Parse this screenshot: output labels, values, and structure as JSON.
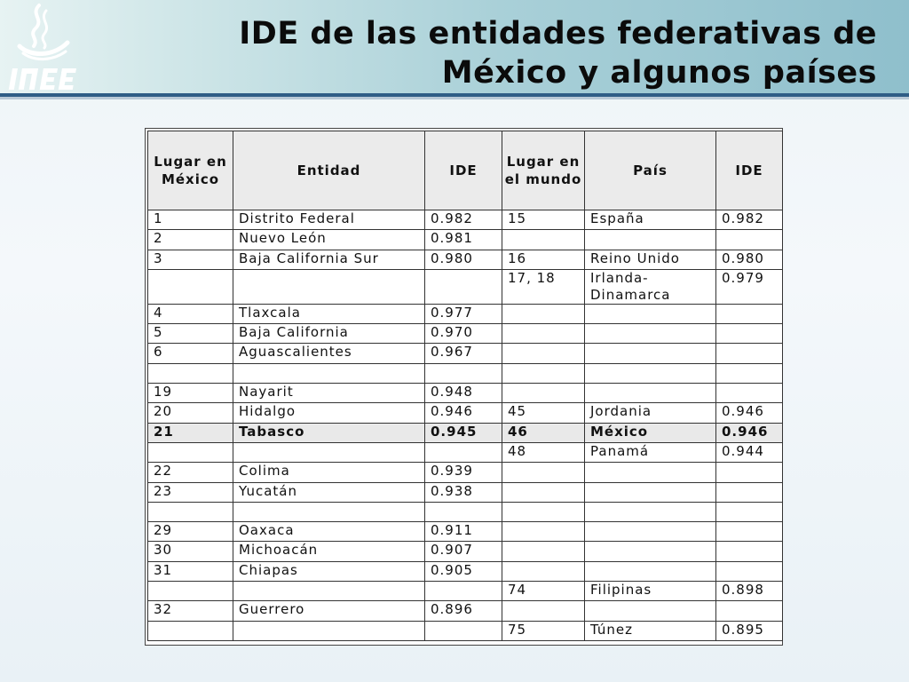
{
  "header": {
    "title_line1": "IDE de las entidades federativas de",
    "title_line2": "México y algunos países",
    "logo_text": "INEE"
  },
  "table": {
    "columns": [
      "Lugar en México",
      "Entidad",
      "IDE",
      "Lugar en el mundo",
      "País",
      "IDE"
    ],
    "rows": [
      [
        "1",
        "Distrito Federal",
        "0.982",
        "15",
        "España",
        "0.982"
      ],
      [
        "2",
        "Nuevo León",
        "0.981",
        "",
        "",
        ""
      ],
      [
        "3",
        "Baja California Sur",
        "0.980",
        "16",
        "Reino Unido",
        "0.980"
      ],
      [
        "",
        "",
        "",
        "17, 18",
        "Irlanda-Dinamarca",
        "0.979"
      ],
      [
        "4",
        "Tlaxcala",
        "0.977",
        "",
        "",
        ""
      ],
      [
        "5",
        "Baja California",
        "0.970",
        "",
        "",
        ""
      ],
      [
        "6",
        "Aguascalientes",
        "0.967",
        "",
        "",
        ""
      ],
      [
        "",
        "",
        "",
        "",
        "",
        ""
      ],
      [
        "19",
        "Nayarit",
        "0.948",
        "",
        "",
        ""
      ],
      [
        "20",
        "Hidalgo",
        "0.946",
        "45",
        "Jordania",
        "0.946"
      ],
      [
        "21",
        "Tabasco",
        "0.945",
        "46",
        "México",
        "0.946"
      ],
      [
        "",
        "",
        "",
        "48",
        "Panamá",
        "0.944"
      ],
      [
        "22",
        "Colima",
        "0.939",
        "",
        "",
        ""
      ],
      [
        "23",
        "Yucatán",
        "0.938",
        "",
        "",
        ""
      ],
      [
        "",
        "",
        "",
        "",
        "",
        ""
      ],
      [
        "29",
        "Oaxaca",
        "0.911",
        "",
        "",
        ""
      ],
      [
        "30",
        "Michoacán",
        "0.907",
        "",
        "",
        ""
      ],
      [
        "31",
        "Chiapas",
        "0.905",
        "",
        "",
        ""
      ],
      [
        "",
        "",
        "",
        "74",
        "Filipinas",
        "0.898"
      ],
      [
        "32",
        "Guerrero",
        "0.896",
        "",
        "",
        ""
      ],
      [
        "",
        "",
        "",
        "75",
        "Túnez",
        "0.895"
      ]
    ],
    "highlight_row": 10
  },
  "colors": {
    "header_rule": "#2f5d86",
    "header_gradient_end": "#8fbfcc",
    "highlight_bg": "#e9e9e9"
  }
}
